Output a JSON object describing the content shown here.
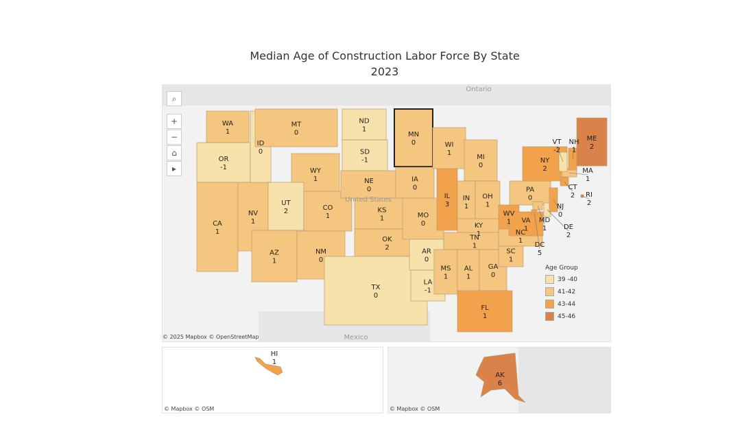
{
  "title": "Median Age of Construction Labor Force By State",
  "subtitle": "2023",
  "map_labels": {
    "ontario": "Ontario",
    "mexico": "Mexico",
    "united_states": "United States"
  },
  "attribution_main": "© 2025 Mapbox  © OpenStreetMap",
  "attribution_small": "© Mapbox  © OSM",
  "tools": {
    "search": "⌕",
    "zoom_in": "+",
    "zoom_out": "−",
    "home": "⌂",
    "play": "▸"
  },
  "legend": {
    "title": "Age Group",
    "items": [
      {
        "label": "39 -40",
        "color": "#f7e2ac"
      },
      {
        "label": "41-42",
        "color": "#f5c67f"
      },
      {
        "label": "43-44",
        "color": "#f2a24a"
      },
      {
        "label": "45-46",
        "color": "#d9824a"
      }
    ]
  },
  "selected_state": "MN",
  "states": [
    {
      "s": "WA",
      "v": "1",
      "g": 1
    },
    {
      "s": "OR",
      "v": "-1",
      "g": 0
    },
    {
      "s": "CA",
      "v": "1",
      "g": 1
    },
    {
      "s": "NV",
      "v": "1",
      "g": 1
    },
    {
      "s": "ID",
      "v": "0",
      "g": 0
    },
    {
      "s": "MT",
      "v": "0",
      "g": 1
    },
    {
      "s": "WY",
      "v": "1",
      "g": 1
    },
    {
      "s": "UT",
      "v": "2",
      "g": 0
    },
    {
      "s": "CO",
      "v": "1",
      "g": 1
    },
    {
      "s": "AZ",
      "v": "1",
      "g": 1
    },
    {
      "s": "NM",
      "v": "0",
      "g": 1
    },
    {
      "s": "ND",
      "v": "1",
      "g": 0
    },
    {
      "s": "SD",
      "v": "-1",
      "g": 0
    },
    {
      "s": "NE",
      "v": "0",
      "g": 1
    },
    {
      "s": "KS",
      "v": "1",
      "g": 1
    },
    {
      "s": "OK",
      "v": "2",
      "g": 1
    },
    {
      "s": "TX",
      "v": "0",
      "g": 0
    },
    {
      "s": "MN",
      "v": "0",
      "g": 1
    },
    {
      "s": "IA",
      "v": "0",
      "g": 1
    },
    {
      "s": "MO",
      "v": "0",
      "g": 1
    },
    {
      "s": "AR",
      "v": "0",
      "g": 0
    },
    {
      "s": "LA",
      "v": "-1",
      "g": 0
    },
    {
      "s": "WI",
      "v": "1",
      "g": 1
    },
    {
      "s": "IL",
      "v": "3",
      "g": 2
    },
    {
      "s": "MI",
      "v": "0",
      "g": 1
    },
    {
      "s": "IN",
      "v": "1",
      "g": 1
    },
    {
      "s": "OH",
      "v": "1",
      "g": 1
    },
    {
      "s": "KY",
      "v": "1",
      "g": 1
    },
    {
      "s": "TN",
      "v": "1",
      "g": 1
    },
    {
      "s": "MS",
      "v": "1",
      "g": 1
    },
    {
      "s": "AL",
      "v": "1",
      "g": 1
    },
    {
      "s": "GA",
      "v": "0",
      "g": 1
    },
    {
      "s": "FL",
      "v": "1",
      "g": 2
    },
    {
      "s": "SC",
      "v": "1",
      "g": 1
    },
    {
      "s": "NC",
      "v": "1",
      "g": 1
    },
    {
      "s": "WV",
      "v": "1",
      "g": 2
    },
    {
      "s": "VA",
      "v": "1",
      "g": 2
    },
    {
      "s": "PA",
      "v": "0",
      "g": 1
    },
    {
      "s": "NY",
      "v": "2",
      "g": 2
    },
    {
      "s": "MD",
      "v": "1",
      "g": 1
    },
    {
      "s": "DC",
      "v": "5",
      "g": 2
    },
    {
      "s": "DE",
      "v": "2",
      "g": 0
    },
    {
      "s": "NJ",
      "v": "0",
      "g": 2
    },
    {
      "s": "CT",
      "v": "2",
      "g": 2
    },
    {
      "s": "MA",
      "v": "1",
      "g": 1
    },
    {
      "s": "RI",
      "v": "2",
      "g": 3
    },
    {
      "s": "VT",
      "v": "-2",
      "g": 0
    },
    {
      "s": "NH",
      "v": "1",
      "g": 2
    },
    {
      "s": "ME",
      "v": "2",
      "g": 3
    }
  ],
  "hawaii": {
    "s": "HI",
    "v": "1",
    "g": 2
  },
  "alaska": {
    "s": "AK",
    "v": "6",
    "g": 3
  }
}
